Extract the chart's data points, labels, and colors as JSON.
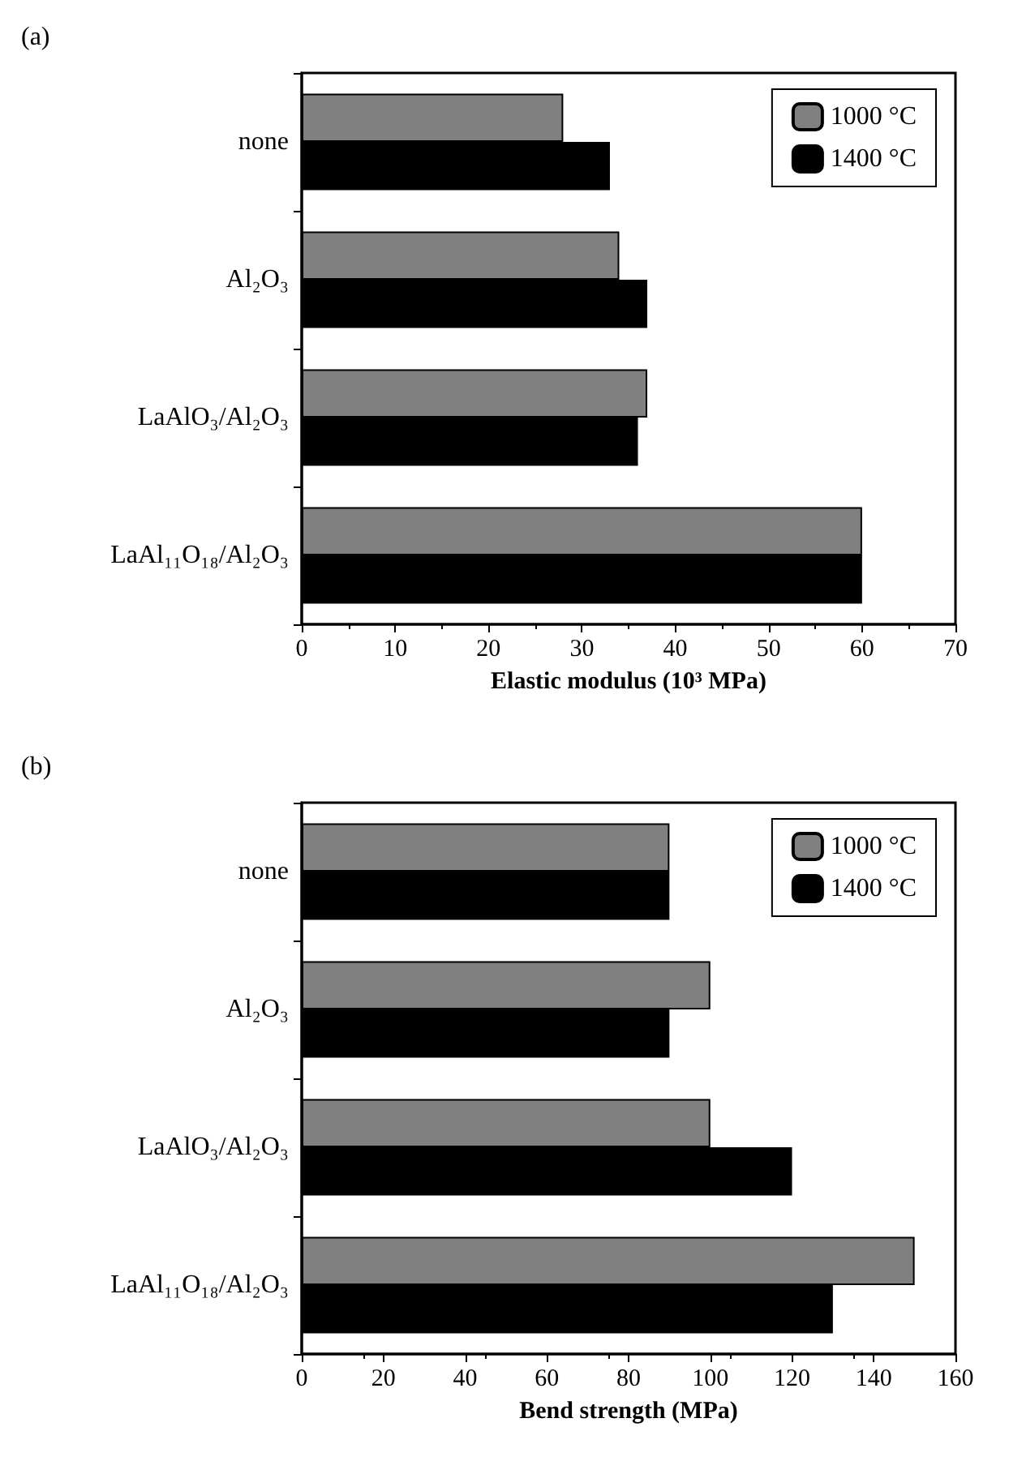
{
  "chart_data": [
    {
      "type": "bar",
      "title": "(a)",
      "orientation": "horizontal",
      "categories": [
        "none",
        "Al₂O₃",
        "LaAlO₃/Al₂O₃",
        "LaAl₁₁O₁₈/Al₂O₃"
      ],
      "series": [
        {
          "name": "1000 °C",
          "color": "#808080",
          "values": [
            28,
            34,
            37,
            60
          ]
        },
        {
          "name": "1400 °C",
          "color": "#000000",
          "values": [
            33,
            37,
            36,
            60
          ]
        }
      ],
      "xlabel": "Elastic modulus (10³ MPa)",
      "xlim": [
        0,
        70
      ],
      "xticks": [
        0,
        10,
        20,
        30,
        40,
        50,
        60,
        70
      ],
      "grid": false,
      "legend": "top right"
    },
    {
      "type": "bar",
      "title": "(b)",
      "orientation": "horizontal",
      "categories": [
        "none",
        "Al₂O₃",
        "LaAlO₃/Al₂O₃",
        "LaAl₁₁O₁₈/Al₂O₃"
      ],
      "series": [
        {
          "name": "1000 °C",
          "color": "#808080",
          "values": [
            90,
            100,
            100,
            150
          ]
        },
        {
          "name": "1400 °C",
          "color": "#000000",
          "values": [
            90,
            90,
            120,
            130
          ]
        }
      ],
      "xlabel": "Bend strength (MPa)",
      "xlim": [
        0,
        160
      ],
      "xticks": [
        0,
        20,
        40,
        60,
        80,
        100,
        120,
        140,
        160
      ],
      "grid": false,
      "legend": "top right"
    }
  ]
}
